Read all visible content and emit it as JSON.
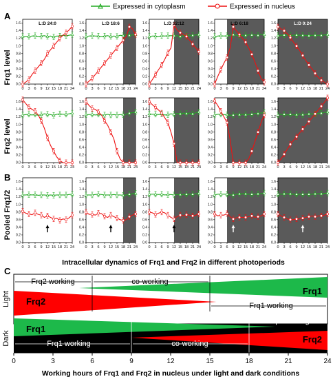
{
  "legend": {
    "cytoplasm": "Expressed in cytoplasm",
    "nucleus": "Expressed in nucleus"
  },
  "colors": {
    "cytoplasm": "#22aa22",
    "nucleus": "#ee1111",
    "dark": "#5a5a5a",
    "frq1_wedge": "#1db94a",
    "frq2_wedge": "#ff0000",
    "dark_band": "#000000"
  },
  "panel_letters": {
    "a": "A",
    "b": "B",
    "c": "C"
  },
  "row_labels": [
    "Frq1 level",
    "Frq2 level",
    "Pooled Frq1/2"
  ],
  "column_titles": [
    "L:D 24:0",
    "L:D 18:6",
    "L:D 12:12",
    "L:D 6:18",
    "L:D 0:24"
  ],
  "caption_ab": "Intracellular dynamics of Frq1 and Frq2 in different photoperiods",
  "caption_c": "Working hours of Frq1 and Frq2 in nucleus under light and dark conditions",
  "panel_c": {
    "light_label": "Light",
    "dark_label": "Dark",
    "light_band": {
      "frq2_working": "Frq2 working",
      "co_working": "co-working",
      "frq1_working": "Frq1 working",
      "frq1_name": "Frq1",
      "frq2_name": "Frq2"
    },
    "dark_band": {
      "frq2_working": "Frq2 working",
      "co_working": "co-working",
      "frq1_working": "Frq1 working",
      "frq1_name": "Frq1",
      "frq2_name": "Frq2"
    },
    "x_ticks": [
      "0",
      "3",
      "6",
      "9",
      "12",
      "15",
      "18",
      "21",
      "24"
    ]
  },
  "chart_data": {
    "type": "line",
    "x": [
      0,
      1.5,
      3,
      4.5,
      6,
      7.5,
      9,
      10.5,
      12,
      13.5,
      15,
      16.5,
      18,
      19.5,
      21,
      22.5,
      24
    ],
    "x_ticks": [
      "0",
      "3",
      "6",
      "9",
      "12",
      "15",
      "18",
      "21",
      "24"
    ],
    "y_ticks": [
      "0.0",
      "0.2",
      "0.4",
      "0.6",
      "0.8",
      "1.0",
      "1.2",
      "1.4",
      "1.6"
    ],
    "ylim": [
      0,
      1.7
    ],
    "dark_start": [
      null,
      18,
      12,
      6,
      0
    ],
    "columns": [
      {
        "title": "L:D 24:0",
        "rows": [
          {
            "cytoplasm": [
              1.25,
              1.25,
              1.25,
              1.26,
              1.27,
              1.25,
              1.26,
              1.27,
              1.25,
              1.26,
              1.24,
              1.26,
              1.26,
              1.28,
              1.27,
              1.28,
              1.3
            ],
            "nucleus": [
              0,
              0.05,
              0.12,
              0.25,
              0.35,
              0.45,
              0.55,
              0.65,
              0.8,
              0.9,
              1.0,
              1.1,
              1.2,
              1.28,
              1.35,
              1.42,
              1.52
            ]
          },
          {
            "cytoplasm": [
              1.25,
              1.26,
              1.27,
              1.25,
              1.27,
              1.24,
              1.26,
              1.28,
              1.27,
              1.26,
              1.24,
              1.27,
              1.28,
              1.27,
              1.27,
              1.28,
              1.3
            ],
            "nucleus": [
              1.65,
              1.55,
              1.45,
              1.4,
              1.35,
              1.25,
              1.1,
              0.9,
              0.65,
              0.45,
              0.3,
              0.15,
              0.05,
              0,
              0,
              0,
              0
            ]
          },
          {
            "cytoplasm": [
              1.25,
              1.25,
              1.26,
              1.25,
              1.26,
              1.24,
              1.25,
              1.25,
              1.24,
              1.25,
              1.24,
              1.25,
              1.25,
              1.25,
              1.25,
              1.26,
              1.27
            ],
            "nucleus": [
              0.82,
              0.77,
              0.75,
              0.73,
              0.78,
              0.74,
              0.72,
              0.66,
              0.7,
              0.66,
              0.62,
              0.64,
              0.58,
              0.62,
              0.6,
              0.65,
              0.72
            ]
          }
        ],
        "arrows": [
          null,
          null,
          {
            "x": 12,
            "color": "black"
          }
        ]
      },
      {
        "title": "L:D 18:6",
        "rows": [
          {
            "cytoplasm": [
              1.25,
              1.26,
              1.27,
              1.26,
              1.26,
              1.25,
              1.26,
              1.27,
              1.25,
              1.26,
              1.25,
              1.28,
              1.27,
              1.3,
              1.28,
              1.29,
              1.3
            ],
            "nucleus": [
              0,
              0.08,
              0.15,
              0.25,
              0.35,
              0.45,
              0.55,
              0.65,
              0.75,
              0.85,
              0.95,
              1.05,
              1.15,
              1.25,
              1.5,
              1.45,
              1.3
            ]
          },
          {
            "cytoplasm": [
              1.26,
              1.26,
              1.27,
              1.25,
              1.27,
              1.25,
              1.25,
              1.27,
              1.25,
              1.26,
              1.25,
              1.26,
              1.26,
              1.27,
              1.3,
              1.31,
              1.33
            ],
            "nucleus": [
              1.6,
              1.5,
              1.42,
              1.4,
              1.33,
              1.25,
              1.1,
              0.98,
              0.8,
              0.62,
              0.3,
              0.1,
              0,
              0,
              0,
              0,
              0
            ]
          },
          {
            "cytoplasm": [
              1.25,
              1.25,
              1.25,
              1.26,
              1.27,
              1.26,
              1.25,
              1.25,
              1.25,
              1.26,
              1.25,
              1.25,
              1.24,
              1.25,
              1.27,
              1.28,
              1.29
            ],
            "nucleus": [
              0.8,
              0.74,
              0.74,
              0.72,
              0.77,
              0.76,
              0.69,
              0.66,
              0.72,
              0.68,
              0.64,
              0.6,
              0.58,
              0.6,
              0.68,
              0.72,
              0.75
            ]
          }
        ],
        "arrows": [
          null,
          null,
          {
            "x": 12,
            "color": "black"
          }
        ]
      },
      {
        "title": "L:D 12:12",
        "rows": [
          {
            "cytoplasm": [
              1.25,
              1.26,
              1.26,
              1.25,
              1.27,
              1.26,
              1.27,
              1.27,
              1.27,
              1.27,
              1.25,
              1.27,
              1.28,
              1.28,
              1.28,
              1.29,
              1.3
            ],
            "nucleus": [
              0,
              0.12,
              0.25,
              0.38,
              0.5,
              0.65,
              0.82,
              0.95,
              1.55,
              1.42,
              1.35,
              1.3,
              1.25,
              1.15,
              1.05,
              0.95,
              0.85
            ]
          },
          {
            "cytoplasm": [
              1.28,
              1.27,
              1.27,
              1.26,
              1.28,
              1.25,
              1.26,
              1.28,
              1.27,
              1.29,
              1.28,
              1.3,
              1.29,
              1.3,
              1.28,
              1.31,
              1.33
            ],
            "nucleus": [
              1.6,
              1.52,
              1.45,
              1.38,
              1.3,
              1.18,
              1.05,
              0.8,
              0.5,
              0,
              0,
              0,
              0,
              0,
              0,
              0,
              0
            ]
          },
          {
            "cytoplasm": [
              1.27,
              1.27,
              1.27,
              1.26,
              1.27,
              1.25,
              1.26,
              1.26,
              1.25,
              1.26,
              1.26,
              1.26,
              1.27,
              1.27,
              1.27,
              1.28,
              1.29
            ],
            "nucleus": [
              0.8,
              0.78,
              0.74,
              0.77,
              0.8,
              0.78,
              0.72,
              0.66,
              0.62,
              0.68,
              0.72,
              0.7,
              0.73,
              0.72,
              0.7,
              0.72,
              0.75
            ]
          }
        ],
        "arrows": [
          null,
          null,
          {
            "x": 12,
            "color": "black"
          }
        ]
      },
      {
        "title": "L:D 6:18",
        "rows": [
          {
            "cytoplasm": [
              1.25,
              1.26,
              1.27,
              1.26,
              1.27,
              1.28,
              1.3,
              1.28,
              1.27,
              1.28,
              1.28,
              1.29,
              1.29,
              1.29,
              1.28,
              1.3,
              1.3
            ],
            "nucleus": [
              0,
              0.2,
              0.38,
              0.55,
              0.7,
              0.95,
              1.5,
              1.4,
              1.3,
              1.2,
              1.1,
              0.95,
              0.78,
              0.58,
              0.35,
              0.15,
              0.05
            ]
          },
          {
            "cytoplasm": [
              1.25,
              1.27,
              1.27,
              1.26,
              1.26,
              1.24,
              1.25,
              1.28,
              1.26,
              1.27,
              1.26,
              1.26,
              1.27,
              1.29,
              1.29,
              1.3,
              1.32
            ],
            "nucleus": [
              1.62,
              1.5,
              1.35,
              1.2,
              1.05,
              0.6,
              0,
              0,
              0,
              0,
              0,
              0.1,
              0.3,
              0.55,
              0.8,
              1.05,
              1.25
            ]
          },
          {
            "cytoplasm": [
              1.25,
              1.27,
              1.27,
              1.27,
              1.27,
              1.25,
              1.25,
              1.27,
              1.28,
              1.28,
              1.28,
              1.27,
              1.27,
              1.27,
              1.28,
              1.28,
              1.3
            ],
            "nucleus": [
              0.75,
              0.7,
              0.72,
              0.72,
              0.76,
              0.68,
              0.62,
              0.65,
              0.66,
              0.66,
              0.66,
              0.68,
              0.7,
              0.66,
              0.68,
              0.7,
              0.75
            ]
          }
        ],
        "arrows": [
          null,
          null,
          {
            "x": 9,
            "color": "white"
          }
        ]
      },
      {
        "title": "L:D 0:24",
        "rows": [
          {
            "cytoplasm": [
              1.27,
              1.28,
              1.29,
              1.28,
              1.28,
              1.28,
              1.29,
              1.28,
              1.28,
              1.28,
              1.27,
              1.28,
              1.28,
              1.28,
              1.28,
              1.29,
              1.3
            ],
            "nucleus": [
              1.5,
              1.45,
              1.4,
              1.32,
              1.22,
              1.1,
              1.0,
              0.88,
              0.75,
              0.62,
              0.5,
              0.4,
              0.28,
              0.18,
              0.1,
              0.05,
              0
            ]
          },
          {
            "cytoplasm": [
              1.25,
              1.26,
              1.27,
              1.25,
              1.27,
              1.25,
              1.26,
              1.28,
              1.26,
              1.27,
              1.28,
              1.28,
              1.27,
              1.29,
              1.3,
              1.32,
              1.33
            ],
            "nucleus": [
              0,
              0.1,
              0.22,
              0.35,
              0.48,
              0.58,
              0.68,
              0.78,
              0.88,
              0.98,
              1.08,
              1.18,
              1.28,
              1.38,
              1.48,
              1.58,
              1.7
            ]
          },
          {
            "cytoplasm": [
              1.27,
              1.27,
              1.28,
              1.28,
              1.28,
              1.27,
              1.27,
              1.27,
              1.27,
              1.27,
              1.27,
              1.27,
              1.28,
              1.28,
              1.28,
              1.29,
              1.3
            ],
            "nucleus": [
              0.75,
              0.7,
              0.66,
              0.62,
              0.6,
              0.6,
              0.62,
              0.62,
              0.64,
              0.66,
              0.68,
              0.7,
              0.68,
              0.7,
              0.7,
              0.72,
              0.75
            ]
          }
        ],
        "arrows": [
          null,
          null,
          {
            "x": 12,
            "color": "white"
          }
        ]
      }
    ]
  }
}
